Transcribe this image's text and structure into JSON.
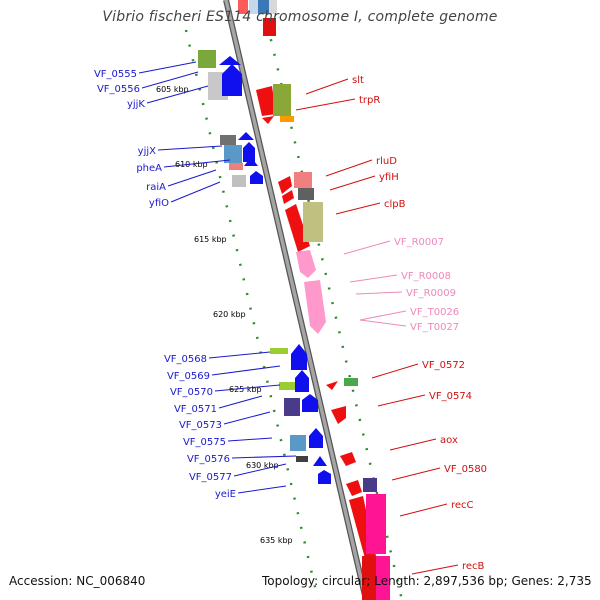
{
  "title": "Vibrio fischeri ES114 chromosome I, complete genome",
  "accession_label": "Accession: NC_006840",
  "topology_label": "Topology: circular",
  "length_label": "Length: 2,897,536 bp",
  "genes_label": "Genes: 2,735",
  "colors": {
    "backbone": "#8a8a8a",
    "ruler_dot": "#2e8b2e",
    "left_label": "#1a1acc",
    "right_label": "#d01010",
    "rna_label": "#ee88bb",
    "forward_gene": "#1010ee",
    "reverse_gene": "#ee1010",
    "rna_gene": "#ff99cc"
  },
  "scale_ticks": [
    "605 kbp",
    "610 kbp",
    "615 kbp",
    "620 kbp",
    "625 kbp",
    "630 kbp",
    "635 kbp"
  ],
  "left_labels": [
    "VF_0555",
    "VF_0556",
    "yjjK",
    "yjjX",
    "pheA",
    "raiA",
    "yfiO",
    "VF_0568",
    "VF_0569",
    "VF_0570",
    "VF_0571",
    "VF_0573",
    "VF_0575",
    "VF_0576",
    "VF_0577",
    "yeiE"
  ],
  "right_labels": [
    "slt",
    "trpR",
    "rluD",
    "yfiH",
    "clpB",
    "VF_R0007",
    "VF_R0008",
    "VF_R0009",
    "VF_T0026",
    "VF_T0027",
    "VF_0572",
    "VF_0574",
    "aox",
    "VF_0580",
    "recC",
    "recB"
  ]
}
